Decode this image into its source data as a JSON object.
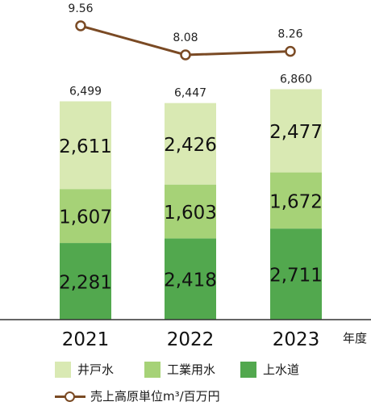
{
  "chart_data": {
    "type": "bar",
    "stacked": true,
    "categories": [
      "2021",
      "2022",
      "2023"
    ],
    "series": [
      {
        "name": "上水道",
        "values": [
          2281,
          2418,
          2711
        ],
        "labels": [
          "2,281",
          "2,418",
          "2,711"
        ],
        "color": "#52a84e"
      },
      {
        "name": "工業用水",
        "values": [
          1607,
          1603,
          1672
        ],
        "labels": [
          "1,607",
          "1,603",
          "1,672"
        ],
        "color": "#a6d277"
      },
      {
        "name": "井戸水",
        "values": [
          2611,
          2426,
          2477
        ],
        "labels": [
          "2,611",
          "2,426",
          "2,477"
        ],
        "color": "#d9e9b3"
      }
    ],
    "totals": [
      6499,
      6447,
      6860
    ],
    "total_labels": [
      "6,499",
      "6,447",
      "6,860"
    ],
    "line_series": {
      "name": "売上高原単位m³/百万円",
      "values": [
        9.56,
        8.08,
        8.26
      ],
      "labels": [
        "9.56",
        "8.08",
        "8.26"
      ],
      "color": "#7a4a24"
    },
    "x_unit": "年度",
    "legend_order": [
      "井戸水",
      "工業用水",
      "上水道"
    ],
    "legend_placement": "bottom",
    "grid": false
  }
}
